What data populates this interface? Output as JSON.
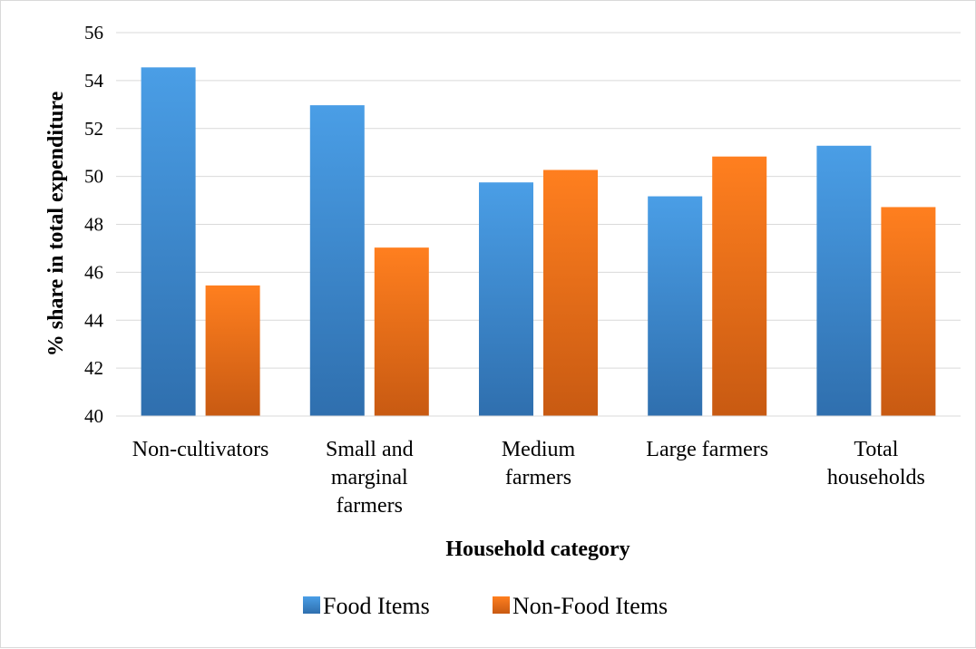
{
  "chart_data": {
    "type": "bar",
    "title": "",
    "xlabel": "Household category",
    "ylabel": "% share in total expenditure",
    "ylim": [
      40,
      56
    ],
    "yticks": [
      40,
      42,
      44,
      46,
      48,
      50,
      52,
      54,
      56
    ],
    "grid": true,
    "legend_position": "bottom",
    "categories": [
      [
        "Non-cultivators"
      ],
      [
        "Small and",
        "marginal",
        "farmers"
      ],
      [
        "Medium",
        "farmers"
      ],
      [
        "Large farmers"
      ],
      [
        "Total",
        "households"
      ]
    ],
    "series": [
      {
        "name": "Food Items",
        "color_top": "#4a9ee6",
        "color_bottom": "#2f6fae",
        "values": [
          54.55,
          52.97,
          49.75,
          49.17,
          51.28
        ]
      },
      {
        "name": "Non-Food Items",
        "color_top": "#ff7f1f",
        "color_bottom": "#c85a12",
        "values": [
          45.45,
          47.03,
          50.27,
          50.83,
          48.72
        ]
      }
    ]
  }
}
